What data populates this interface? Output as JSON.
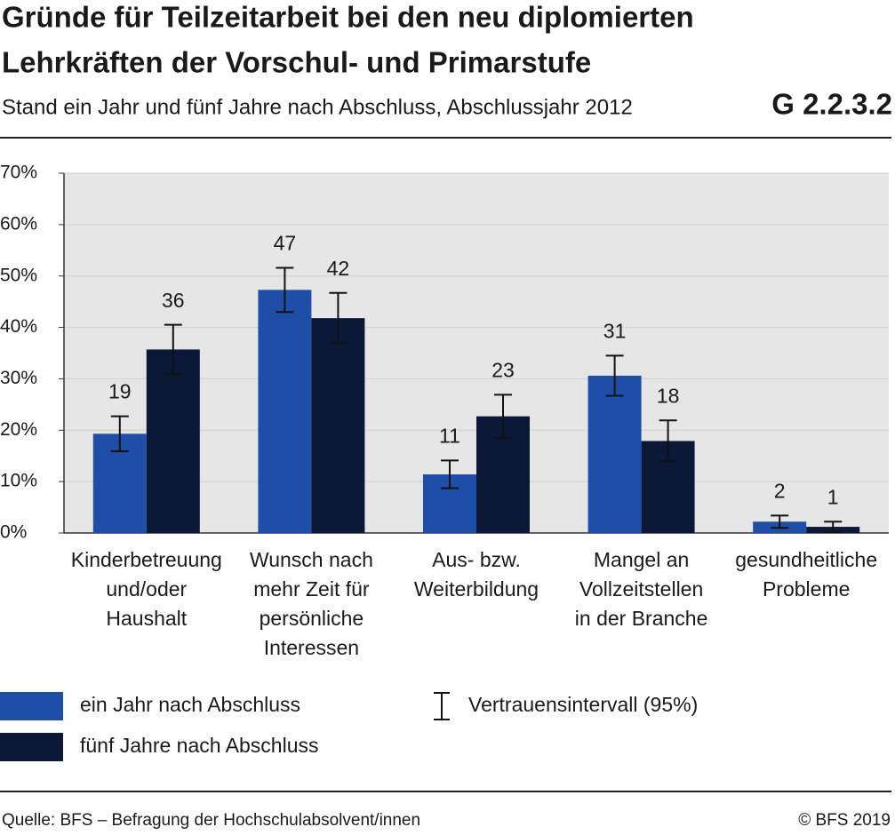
{
  "chart_data": {
    "type": "bar",
    "title": [
      "Gründe für Teilzeitarbeit bei den neu diplomierten",
      "Lehrkräften der Vorschul- und Primarstufe"
    ],
    "subtitle": "Stand ein Jahr und fünf Jahre nach Abschluss, Abschlussjahr 2012",
    "code": "G 2.2.3.2",
    "categories": [
      "Kinderbetreuung\nund/oder\nHaushalt",
      "Wunsch nach\nmehr Zeit für\npersönliche\nInteressen",
      "Aus- bzw.\nWeiterbildung",
      "Mangel an\nVollzeitstellen\nin der Branche",
      "gesundheitliche\nProbleme"
    ],
    "series": [
      {
        "name": "ein Jahr nach Abschluss",
        "color": "#1f4ea8",
        "values": [
          19.3,
          47.3,
          11.4,
          30.6,
          2.2
        ],
        "value_labels": [
          "19",
          "47",
          "11",
          "31",
          "2"
        ],
        "errors": [
          3.4,
          4.3,
          2.7,
          3.9,
          1.2
        ]
      },
      {
        "name": "fünf Jahre nach Abschluss",
        "color": "#0b1838",
        "values": [
          35.7,
          41.8,
          22.7,
          17.9,
          1.2
        ],
        "value_labels": [
          "36",
          "42",
          "23",
          "18",
          "1"
        ],
        "errors": [
          4.8,
          4.9,
          4.2,
          4.0,
          1.0
        ]
      }
    ],
    "ci_label": "Vertrauensintervall (95%)",
    "ylim": [
      0,
      70
    ],
    "yticks": [
      {
        "value": 0,
        "label": "0%"
      },
      {
        "value": 10,
        "label": "10%"
      },
      {
        "value": 20,
        "label": "20%"
      },
      {
        "value": 30,
        "label": "30%"
      },
      {
        "value": 40,
        "label": "40%"
      },
      {
        "value": 50,
        "label": "50%"
      },
      {
        "value": 60,
        "label": "60%"
      },
      {
        "value": 70,
        "label": "70%"
      }
    ],
    "grid": true,
    "source": "Quelle: BFS – Befragung der Hochschulabsolvent/innen",
    "copyright": "© BFS 2019"
  }
}
